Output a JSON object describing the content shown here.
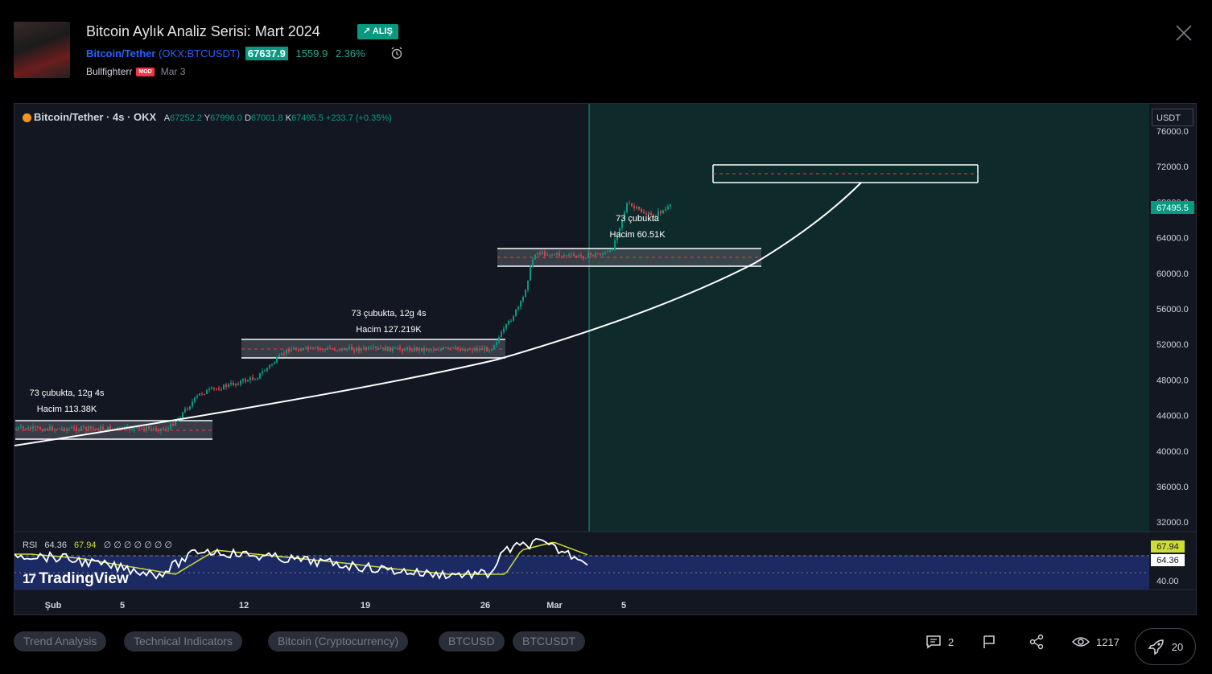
{
  "header": {
    "title": "Bitcoin Aylık Analiz Serisi: Mart 2024",
    "badge": "↗ ALIŞ",
    "symbol_name": "Bitcoin/Tether",
    "symbol_code": "OKX:BTCUSDT",
    "price": "67637.9",
    "change": "1559.9",
    "change_pct": "2.36%",
    "author": "Bullfighterr",
    "author_badge": "MOD",
    "date": "Mar 3"
  },
  "chart": {
    "legend_title": "Bitcoin/Tether · 4s · OKX",
    "ohlc": {
      "a_label": "A",
      "a": "67252.2",
      "y_label": "Y",
      "y": "67996.0",
      "d_label": "D",
      "d": "67001.8",
      "k_label": "K",
      "k": "67495.5",
      "chg": "+233.7 (+0.35%)"
    },
    "currency": "USDT",
    "current_price": "67495.5",
    "y_axis": [
      "76000.0",
      "72000.0",
      "68000.0",
      "64000.0",
      "60000.0",
      "56000.0",
      "52000.0",
      "48000.0",
      "44000.0",
      "40000.0",
      "36000.0",
      "32000.0"
    ],
    "x_axis": [
      "Şub",
      "5",
      "12",
      "19",
      "26",
      "Mar",
      "5"
    ],
    "annotations": [
      {
        "line1": "73 çubukta, 12g 4s",
        "line2": "Hacim 113.38K"
      },
      {
        "line1": "73 çubukta, 12g 4s",
        "line2": "Hacim 127.219K"
      },
      {
        "line1": "73 çubukta",
        "line2": "Hacim 60.51K"
      }
    ],
    "rsi": {
      "label": "RSI",
      "value": "64.36",
      "ma": "67.94",
      "placeholders": "∅ ∅ ∅ ∅ ∅ ∅ ∅",
      "axis_label": "40.00"
    },
    "watermark": "TradingView"
  },
  "tags": [
    "Trend Analysis",
    "Technical Indicators",
    "Bitcoin (Cryptocurrency)",
    "BTCUSD",
    "BTCUSDT"
  ],
  "footer": {
    "comments": "2",
    "views": "1217",
    "boosts": "20"
  },
  "colors": {
    "up": "#089981",
    "down": "#f23645",
    "accent": "#2962ff",
    "bg": "#131722",
    "future_bg": "#0f2a2b"
  }
}
